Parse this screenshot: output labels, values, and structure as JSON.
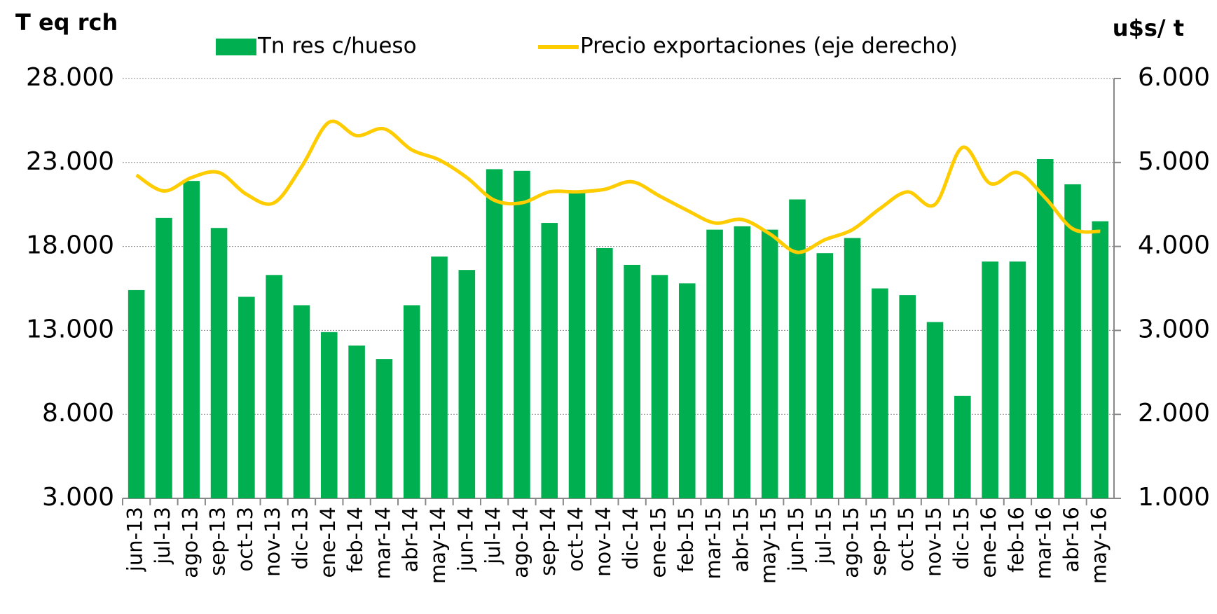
{
  "chart_data": {
    "type": "bar_line",
    "y_title": "T eq rch",
    "y2_title": "u$s/ t",
    "categories": [
      "jun-13",
      "jul-13",
      "ago-13",
      "sep-13",
      "oct-13",
      "nov-13",
      "dic-13",
      "ene-14",
      "feb-14",
      "mar-14",
      "abr-14",
      "may-14",
      "jun-14",
      "jul-14",
      "ago-14",
      "sep-14",
      "oct-14",
      "nov-14",
      "dic-14",
      "ene-15",
      "feb-15",
      "mar-15",
      "abr-15",
      "may-15",
      "jun-15",
      "jul-15",
      "ago-15",
      "sep-15",
      "oct-15",
      "nov-15",
      "dic-15",
      "ene-16",
      "feb-16",
      "mar-16",
      "abr-16",
      "may-16"
    ],
    "series": [
      {
        "name": "Tn res c/hueso",
        "type": "bar",
        "color": "#00b050",
        "values": [
          15400,
          19700,
          21900,
          19100,
          15000,
          16300,
          14500,
          12900,
          12100,
          11300,
          14500,
          17400,
          16600,
          22600,
          22500,
          19400,
          21200,
          17900,
          16900,
          16300,
          15800,
          19000,
          19200,
          19000,
          20800,
          17600,
          18500,
          15500,
          15100,
          13500,
          9100,
          17100,
          17100,
          23200,
          21700,
          19500
        ]
      },
      {
        "name": "Precio exportaciones (eje derecho)",
        "type": "line",
        "axis": "y2",
        "color": "#ffcc00",
        "values": [
          4850,
          4660,
          4820,
          4880,
          4620,
          4520,
          4950,
          5480,
          5320,
          5400,
          5150,
          5030,
          4820,
          4550,
          4520,
          4650,
          4650,
          4680,
          4770,
          4600,
          4430,
          4280,
          4320,
          4150,
          3930,
          4080,
          4200,
          4450,
          4650,
          4500,
          5180,
          4750,
          4880,
          4580,
          4210,
          4180
        ]
      }
    ],
    "ylim": [
      3000,
      28000
    ],
    "yticks": [
      {
        "value": 3000,
        "label": "3.000"
      },
      {
        "value": 8000,
        "label": "8.000"
      },
      {
        "value": 13000,
        "label": "13.000"
      },
      {
        "value": 18000,
        "label": "18.000"
      },
      {
        "value": 23000,
        "label": "23.000"
      },
      {
        "value": 28000,
        "label": "28.000"
      }
    ],
    "y2lim": [
      1000,
      6000
    ],
    "y2ticks": [
      {
        "value": 1000,
        "label": "1.000"
      },
      {
        "value": 2000,
        "label": "2.000"
      },
      {
        "value": 3000,
        "label": "3.000"
      },
      {
        "value": 4000,
        "label": "4.000"
      },
      {
        "value": 5000,
        "label": "5.000"
      },
      {
        "value": 6000,
        "label": "6.000"
      }
    ],
    "grid": true
  }
}
